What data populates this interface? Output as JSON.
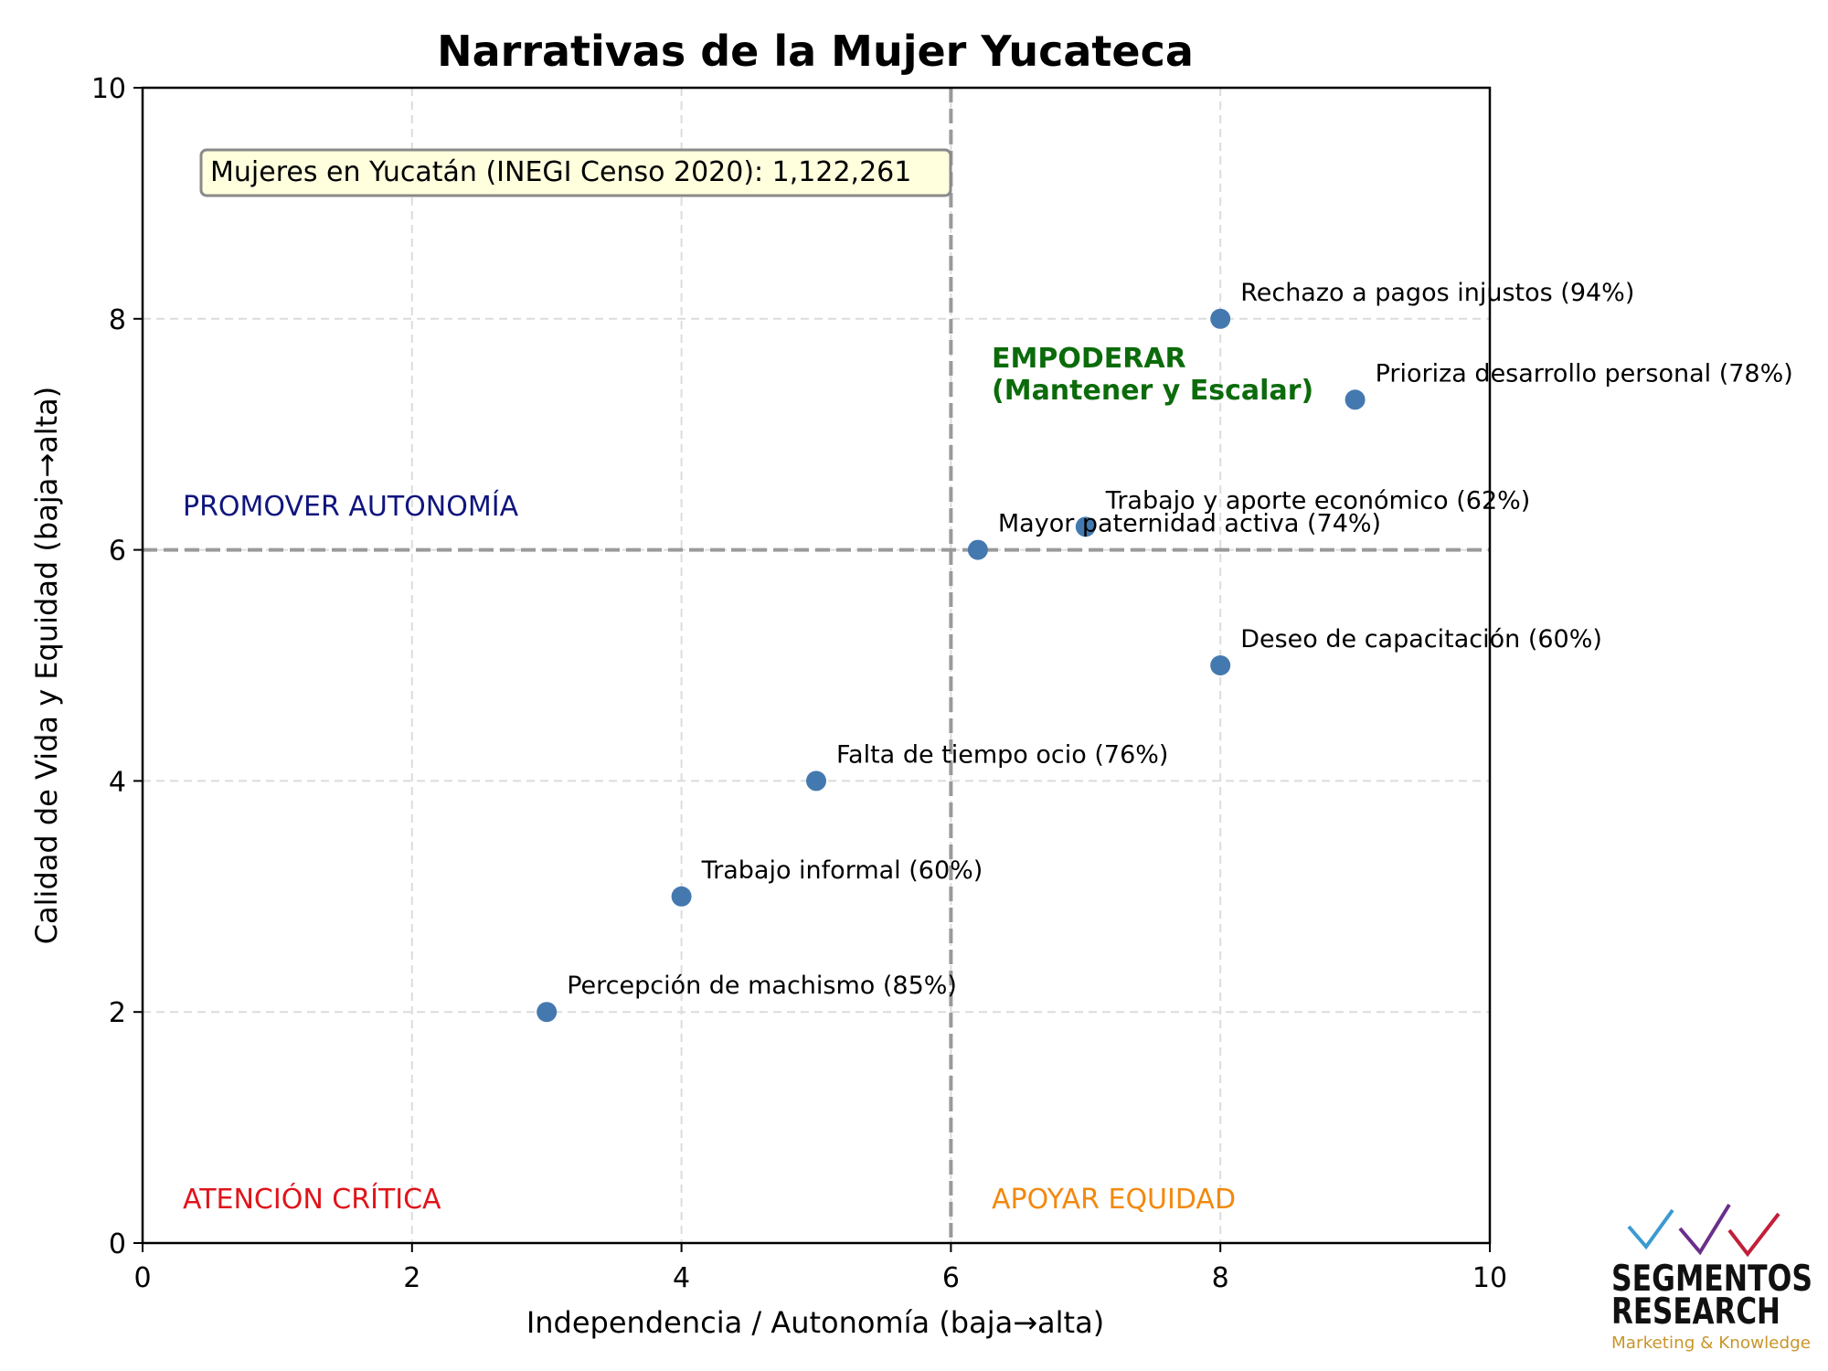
{
  "chart_data": {
    "type": "scatter",
    "title": "Narrativas de la Mujer Yucateca",
    "xlabel": "Independencia / Autonomía (baja→alta)",
    "ylabel": "Calidad de Vida y Equidad (baja→alta)",
    "xlim": [
      0,
      10
    ],
    "ylim": [
      0,
      10
    ],
    "xticks": [
      "0",
      "2",
      "4",
      "6",
      "8",
      "10"
    ],
    "yticks": [
      "0",
      "2",
      "4",
      "6",
      "8",
      "10"
    ],
    "grid": true,
    "divider_x": 6,
    "divider_y": 6,
    "marker_color": "#4479b0",
    "points": [
      {
        "x": 8,
        "y": 8,
        "label": "Rechazo a pagos injustos (94%)"
      },
      {
        "x": 9,
        "y": 7.3,
        "label": "Prioriza desarrollo personal (78%)"
      },
      {
        "x": 7,
        "y": 6.2,
        "label": "Trabajo y aporte económico (62%)"
      },
      {
        "x": 6.2,
        "y": 6,
        "label": "Mayor paternidad activa (74%)"
      },
      {
        "x": 8,
        "y": 5,
        "label": "Deseo de capacitación (60%)"
      },
      {
        "x": 5,
        "y": 4,
        "label": "Falta de tiempo ocio (76%)"
      },
      {
        "x": 4,
        "y": 3,
        "label": "Trabajo informal (60%)"
      },
      {
        "x": 3,
        "y": 2,
        "label": "Percepción de machismo (85%)"
      }
    ],
    "quadrants": {
      "top_right": {
        "line1": "EMPODERAR",
        "line2": "(Mantener y Escalar)",
        "color": "#0b6b0b"
      },
      "top_left": {
        "text": "PROMOVER AUTONOMÍA",
        "color": "#10157d"
      },
      "bottom_left": {
        "text": "ATENCIÓN CRÍTICA",
        "color": "#e0141b"
      },
      "bottom_right": {
        "text": "APOYAR EQUIDAD",
        "color": "#f2890f"
      }
    },
    "annotation_box": "Mujeres en Yucatán (INEGI Censo 2020): 1,122,261"
  },
  "logo": {
    "line1": "SEGMENTOS",
    "line2": "RESEARCH",
    "tagline": "Marketing & Knowledge",
    "tagline_color": "#c8952a",
    "check_colors": [
      "#3b9ad1",
      "#6a2f8a",
      "#c21f3a"
    ]
  }
}
